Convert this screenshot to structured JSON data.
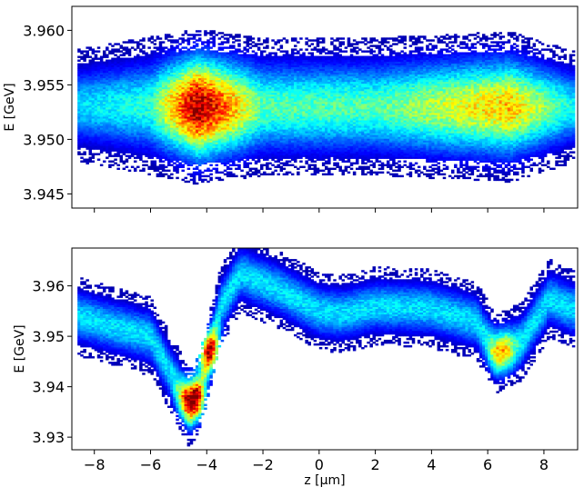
{
  "chart_data": [
    {
      "type": "heatmap",
      "title": "",
      "xlabel": "",
      "ylabel": "E [GeV]",
      "xlim": [
        -8.8,
        9.2
      ],
      "ylim": [
        3.9437,
        3.9622
      ],
      "xticks": [
        -8,
        -6,
        -4,
        -2,
        0,
        2,
        4,
        6,
        8
      ],
      "xtick_labels_shown": false,
      "yticks": [
        3.945,
        3.95,
        3.955,
        3.96
      ],
      "ytick_labels": [
        "3.945",
        "3.950",
        "3.955",
        "3.960"
      ],
      "colormap": "jet",
      "background": "#ffffff",
      "distribution": {
        "description_points": [
          {
            "z": -8.6,
            "E_center": 3.9531,
            "E_halfwidth": 0.0045,
            "intensity": 0.15
          },
          {
            "z": -6.0,
            "E_center": 3.9531,
            "E_halfwidth": 0.0055,
            "intensity": 0.25
          },
          {
            "z": -4.3,
            "E_center": 3.953,
            "E_halfwidth": 0.0062,
            "intensity": 1.0
          },
          {
            "z": -2.0,
            "E_center": 3.953,
            "E_halfwidth": 0.0055,
            "intensity": 0.3
          },
          {
            "z": 2.0,
            "E_center": 3.953,
            "E_halfwidth": 0.0055,
            "intensity": 0.3
          },
          {
            "z": 6.8,
            "E_center": 3.953,
            "E_halfwidth": 0.006,
            "intensity": 0.6
          },
          {
            "z": 9.0,
            "E_center": 3.953,
            "E_halfwidth": 0.0045,
            "intensity": 0.2
          }
        ]
      }
    },
    {
      "type": "heatmap",
      "title": "",
      "xlabel": "z [μm]",
      "ylabel": "E [GeV]",
      "xlim": [
        -8.8,
        9.2
      ],
      "ylim": [
        3.9275,
        3.9675
      ],
      "xticks": [
        -8,
        -6,
        -4,
        -2,
        0,
        2,
        4,
        6,
        8
      ],
      "xtick_labels": [
        "−8",
        "−6",
        "−4",
        "−2",
        "0",
        "2",
        "4",
        "6",
        "8"
      ],
      "yticks": [
        3.93,
        3.94,
        3.95,
        3.96
      ],
      "ytick_labels": [
        "3.93",
        "3.94",
        "3.95",
        "3.96"
      ],
      "colormap": "jet",
      "background": "#ffffff",
      "distribution": {
        "centerline": [
          {
            "z": -8.6,
            "E": 3.954
          },
          {
            "z": -6.0,
            "E": 3.95
          },
          {
            "z": -5.0,
            "E": 3.94
          },
          {
            "z": -4.6,
            "E": 3.9355
          },
          {
            "z": -4.2,
            "E": 3.94
          },
          {
            "z": -3.5,
            "E": 3.956
          },
          {
            "z": -2.8,
            "E": 3.9625
          },
          {
            "z": -1.5,
            "E": 3.9595
          },
          {
            "z": 0.0,
            "E": 3.955
          },
          {
            "z": 0.8,
            "E": 3.9545
          },
          {
            "z": 2.0,
            "E": 3.956
          },
          {
            "z": 4.0,
            "E": 3.9555
          },
          {
            "z": 5.6,
            "E": 3.953
          },
          {
            "z": 6.3,
            "E": 3.9465
          },
          {
            "z": 7.2,
            "E": 3.949
          },
          {
            "z": 8.2,
            "E": 3.9575
          },
          {
            "z": 9.0,
            "E": 3.9555
          }
        ],
        "hot_spots": [
          {
            "z": -4.5,
            "E": 3.9375,
            "intensity": 1.0
          },
          {
            "z": -3.9,
            "E": 3.947,
            "intensity": 0.85
          },
          {
            "z": 6.5,
            "E": 3.947,
            "intensity": 0.5
          }
        ]
      }
    }
  ]
}
